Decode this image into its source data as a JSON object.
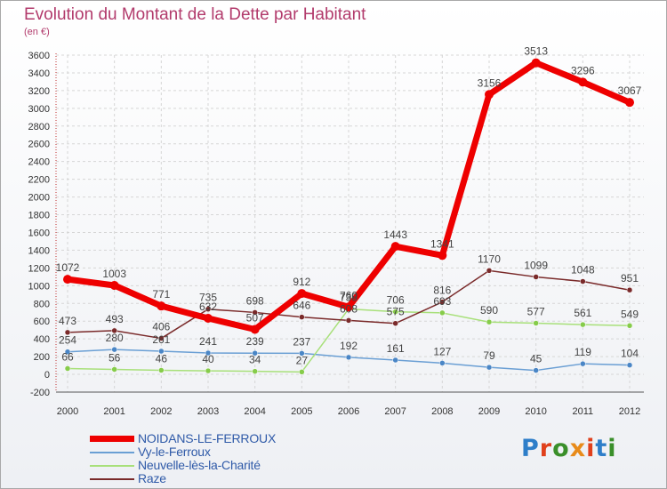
{
  "title": "Evolution du Montant de la Dette par Habitant",
  "subtitle": "(en €)",
  "logo": {
    "text": "Proxiti",
    "colors": [
      "#2e7ec9",
      "#e0401c",
      "#3a8f2a",
      "#e88b1a",
      "#e0401c",
      "#2e7ec9",
      "#3a8f2a"
    ]
  },
  "chart_data": {
    "type": "line",
    "x": [
      "2000",
      "2001",
      "2002",
      "2003",
      "2004",
      "2005",
      "2006",
      "2007",
      "2008",
      "2009",
      "2010",
      "2011",
      "2012"
    ],
    "ylim": [
      -200,
      3600
    ],
    "yticks": [
      -200,
      0,
      200,
      400,
      600,
      800,
      1000,
      1200,
      1400,
      1600,
      1800,
      2000,
      2200,
      2400,
      2600,
      2800,
      3000,
      3200,
      3400,
      3600
    ],
    "grid": true,
    "legend_position": "bottom-left",
    "series": [
      {
        "name": "NOIDANS-LE-FERROUX",
        "color": "#ee0000",
        "width": 7,
        "point": "#ee0000",
        "values": [
          1072,
          1003,
          771,
          632,
          507,
          912,
          760,
          1443,
          1341,
          3156,
          3513,
          3296,
          3067
        ]
      },
      {
        "name": "Vy-le-Ferroux",
        "color": "#6a9fd4",
        "width": 1.5,
        "point": "#4a86c6",
        "values": [
          254,
          280,
          261,
          241,
          239,
          237,
          192,
          161,
          127,
          79,
          45,
          119,
          104
        ]
      },
      {
        "name": "Neuvelle-lès-la-Charité",
        "color": "#a8e07a",
        "width": 1.5,
        "point": "#86cc4a",
        "values": [
          66,
          56,
          46,
          40,
          34,
          27,
          738,
          706,
          693,
          590,
          577,
          561,
          549
        ]
      },
      {
        "name": "Raze",
        "color": "#7a2a2a",
        "width": 1.5,
        "point": "#7a2a2a",
        "values": [
          473,
          493,
          406,
          735,
          698,
          646,
          608,
          575,
          816,
          1170,
          1099,
          1048,
          951
        ]
      }
    ],
    "point_labels": [
      {
        "series": 0,
        "values": [
          "1072",
          "1003",
          "771",
          "632",
          "507",
          "912",
          "760",
          "1443",
          "1341",
          "3156",
          "3513",
          "3296",
          "3067"
        ]
      },
      {
        "series": 1,
        "values": [
          "254",
          "280",
          "261",
          "241",
          "239",
          "237",
          "192",
          "161",
          "127",
          "79",
          "45",
          "119",
          "104"
        ]
      },
      {
        "series": 2,
        "values": [
          "66",
          "56",
          "46",
          "40",
          "34",
          "27",
          "738",
          "706",
          "693",
          "590",
          "577",
          "561",
          "549"
        ]
      },
      {
        "series": 3,
        "values": [
          "473",
          "493",
          "406",
          "735",
          "698",
          "646",
          "608",
          "575",
          "816",
          "1170",
          "1099",
          "1048",
          "951"
        ]
      }
    ]
  }
}
